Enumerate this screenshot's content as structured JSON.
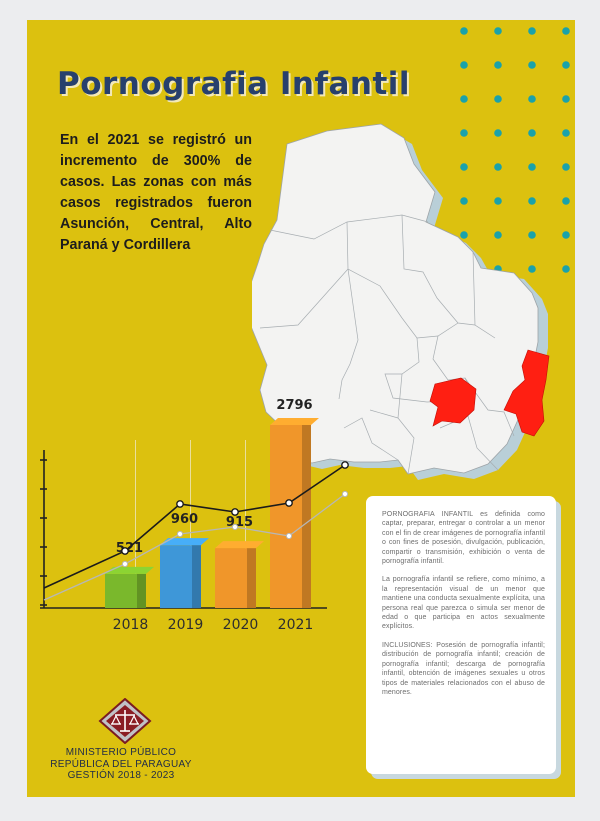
{
  "poster": {
    "title": "Pornografia Infantil",
    "intro": "En el 2021 se registró un incremento de 300% de casos. Las zonas con más casos registrados fueron Asunción, Central, Alto Paraná y Cordillera"
  },
  "chart_data": {
    "type": "bar",
    "categories": [
      "2018",
      "2019",
      "2020",
      "2021"
    ],
    "values": [
      521,
      960,
      915,
      2796
    ],
    "bar_colors": [
      "#7ab82c",
      "#3e97d8",
      "#f0962a",
      "#f0962a"
    ]
  },
  "info_card": {
    "definition": "PORNOGRAFIA INFANTIL es definida como captar, preparar, entregar o controlar a un menor con el fin de crear imágenes de pornografía infantil o con fines de posesión, divulgación, publicación, compartir o transmisión, exhibición o venta de pornografía infantil.",
    "representation": "La pornografía infantil se refiere, como mínimo, a la representación visual de un menor que mantiene una conducta sexualmente explícita, una persona real que parezca o simula ser menor de edad o que participa en actos sexualmente explícitos.",
    "inclusions": "INCLUSIONES: Posesión de pornografía infantil; distribución de pornografía infantil; creación de pornografía infantil; descarga de pornografía infantil, obtención de imágenes sexuales u otros tipos de materiales relacionados con el abuso de menores."
  },
  "footer": {
    "org_line1": "MINISTERIO PÚBLICO",
    "org_line2": "REPÚBLICA DEL PARAGUAY",
    "org_line3": "GESTIÓN  2018  - 2023"
  },
  "colors": {
    "background": "#dcc10f",
    "title": "#27406d",
    "dots": "#1aa2aa",
    "highlight_regions": "#ff1f12",
    "map_fill": "#f3f3f2"
  },
  "icons": {
    "logo": "scales-of-justice-diamond"
  }
}
